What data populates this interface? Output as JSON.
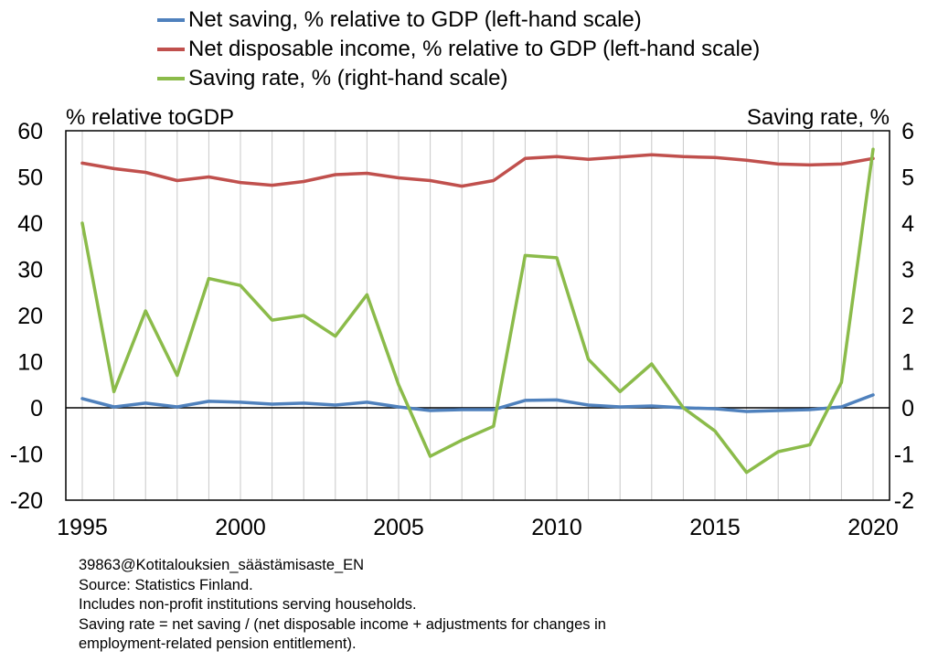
{
  "chart_data": {
    "type": "line",
    "legend": [
      {
        "label": "Net saving, % relative to GDP (left-hand scale)",
        "color": "#4f81bd"
      },
      {
        "label": "Net disposable income, % relative to GDP (left-hand scale)",
        "color": "#c0504d"
      },
      {
        "label": "Saving rate, % (right-hand scale)",
        "color": "#8bbb4a"
      }
    ],
    "left_axis_title": "% relative toGDP",
    "right_axis_title": "Saving rate, %",
    "left_ylim": [
      -20,
      60
    ],
    "left_ticks": [
      "60",
      "50",
      "40",
      "30",
      "20",
      "10",
      "0",
      "-10",
      "-20"
    ],
    "right_ylim": [
      -2,
      6
    ],
    "right_ticks": [
      "6",
      "5",
      "4",
      "3",
      "2",
      "1",
      "0",
      "-1",
      "-2"
    ],
    "xlim": [
      1995,
      2020
    ],
    "x_ticks": [
      "1995",
      "2000",
      "2005",
      "2010",
      "2015",
      "2020"
    ],
    "x": [
      1995,
      1996,
      1997,
      1998,
      1999,
      2000,
      2001,
      2002,
      2003,
      2004,
      2005,
      2006,
      2007,
      2008,
      2009,
      2010,
      2011,
      2012,
      2013,
      2014,
      2015,
      2016,
      2017,
      2018,
      2019,
      2020
    ],
    "series": [
      {
        "name": "Net saving, % relative to GDP (left-hand scale)",
        "axis": "left",
        "color": "#4f81bd",
        "values": [
          2.0,
          0.2,
          1.0,
          0.2,
          1.4,
          1.2,
          0.8,
          1.0,
          0.6,
          1.2,
          0.2,
          -0.6,
          -0.4,
          -0.4,
          1.6,
          1.7,
          0.6,
          0.2,
          0.4,
          0.0,
          -0.2,
          -0.8,
          -0.6,
          -0.4,
          0.2,
          2.8
        ]
      },
      {
        "name": "Net disposable income, % relative to GDP (left-hand scale)",
        "axis": "left",
        "color": "#c0504d",
        "values": [
          53.0,
          51.8,
          51.0,
          49.2,
          50.0,
          48.8,
          48.2,
          49.0,
          50.5,
          50.8,
          49.8,
          49.2,
          48.0,
          49.2,
          54.0,
          54.4,
          53.8,
          54.3,
          54.8,
          54.4,
          54.2,
          53.6,
          52.8,
          52.6,
          52.8,
          54.0
        ]
      },
      {
        "name": "Saving rate, % (right-hand scale)",
        "axis": "right",
        "color": "#8bbb4a",
        "values": [
          4.0,
          0.35,
          2.1,
          0.7,
          2.8,
          2.65,
          1.9,
          2.0,
          1.55,
          2.45,
          0.5,
          -1.05,
          -0.7,
          -0.4,
          3.3,
          3.25,
          1.05,
          0.35,
          0.95,
          0.0,
          -0.5,
          -1.4,
          -0.95,
          -0.8,
          0.55,
          5.6
        ]
      }
    ],
    "grid": "vertical"
  },
  "notes": [
    "39863@Kotitalouksien_säästämisaste_EN",
    "Source: Statistics Finland.",
    "Includes non-profit institutions serving households.",
    "Saving rate = net saving / (net disposable income + adjustments for changes in",
    "employment-related pension entitlement)."
  ]
}
